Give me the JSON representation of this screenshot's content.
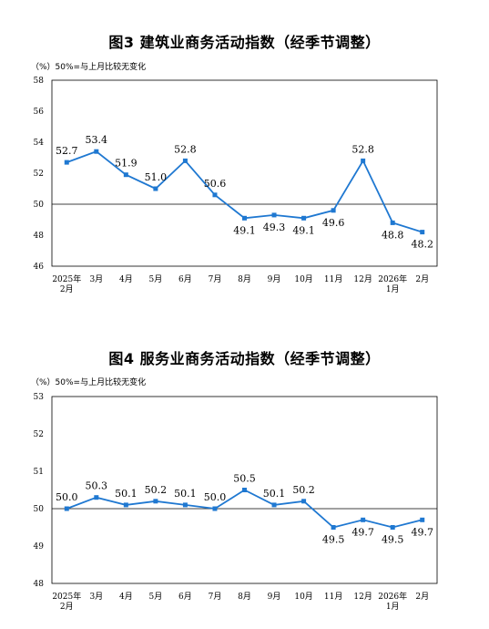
{
  "charts": [
    {
      "title": "图3  建筑业商务活动指数（经季节调整）",
      "note": "（%）50%=与上月比较无变化"
    },
    {
      "title": "图4  服务业商务活动指数（经季节调整）",
      "note": "（%）50%=与上月比较无变化"
    }
  ],
  "chart_data": [
    {
      "type": "line",
      "title": "图3  建筑业商务活动指数（经季节调整）",
      "ylabel": "（%）",
      "categories": [
        [
          "2025年",
          "2月"
        ],
        [
          "3月"
        ],
        [
          "4月"
        ],
        [
          "5月"
        ],
        [
          "6月"
        ],
        [
          "7月"
        ],
        [
          "8月"
        ],
        [
          "9月"
        ],
        [
          "10月"
        ],
        [
          "11月"
        ],
        [
          "12月"
        ],
        [
          "2026年",
          "1月"
        ],
        [
          "2月"
        ]
      ],
      "values": [
        52.7,
        53.4,
        51.9,
        51.0,
        52.8,
        50.6,
        49.1,
        49.3,
        49.1,
        49.6,
        52.8,
        48.8,
        48.2
      ],
      "data_labels": [
        "52.7",
        "53.4",
        "51.9",
        "51.0",
        "52.8",
        "50.6",
        "49.1",
        "49.3",
        "49.1",
        "49.6",
        "52.8",
        "48.8",
        "48.2"
      ],
      "label_below": [
        false,
        false,
        false,
        false,
        false,
        false,
        true,
        true,
        true,
        true,
        false,
        true,
        true
      ],
      "hide_label": [
        false,
        false,
        false,
        false,
        false,
        false,
        false,
        false,
        false,
        false,
        false,
        false,
        false
      ],
      "yticks": [
        46,
        48,
        50,
        52,
        54,
        56,
        58
      ],
      "ylim": [
        46,
        58
      ],
      "reference_line": 50,
      "line_color": "#1f78d1",
      "grid": false
    },
    {
      "type": "line",
      "title": "图4  服务业商务活动指数（经季节调整）",
      "ylabel": "（%）",
      "categories": [
        [
          "2025年",
          "2月"
        ],
        [
          "3月"
        ],
        [
          "4月"
        ],
        [
          "5月"
        ],
        [
          "6月"
        ],
        [
          "7月"
        ],
        [
          "8月"
        ],
        [
          "9月"
        ],
        [
          "10月"
        ],
        [
          "11月"
        ],
        [
          "12月"
        ],
        [
          "2026年",
          "1月"
        ],
        [
          "2月"
        ]
      ],
      "values": [
        50.0,
        50.3,
        50.1,
        50.2,
        50.1,
        50.0,
        50.5,
        50.1,
        50.2,
        49.5,
        49.7,
        49.5,
        49.7
      ],
      "data_labels": [
        "50.0",
        "50.3",
        "50.1",
        "50.2",
        "50.1",
        "50.0",
        "50.5",
        "50.1",
        "50.2",
        "49.5",
        "49.7",
        "49.5",
        "49.7"
      ],
      "label_below": [
        false,
        false,
        false,
        false,
        false,
        false,
        false,
        false,
        false,
        true,
        true,
        true,
        true
      ],
      "hide_label": [
        false,
        false,
        false,
        false,
        false,
        false,
        false,
        false,
        false,
        false,
        false,
        false,
        false
      ],
      "yticks": [
        48,
        49,
        50,
        51,
        52,
        53
      ],
      "ylim": [
        48,
        53
      ],
      "reference_line": 50,
      "line_color": "#1f78d1",
      "grid": false
    }
  ]
}
